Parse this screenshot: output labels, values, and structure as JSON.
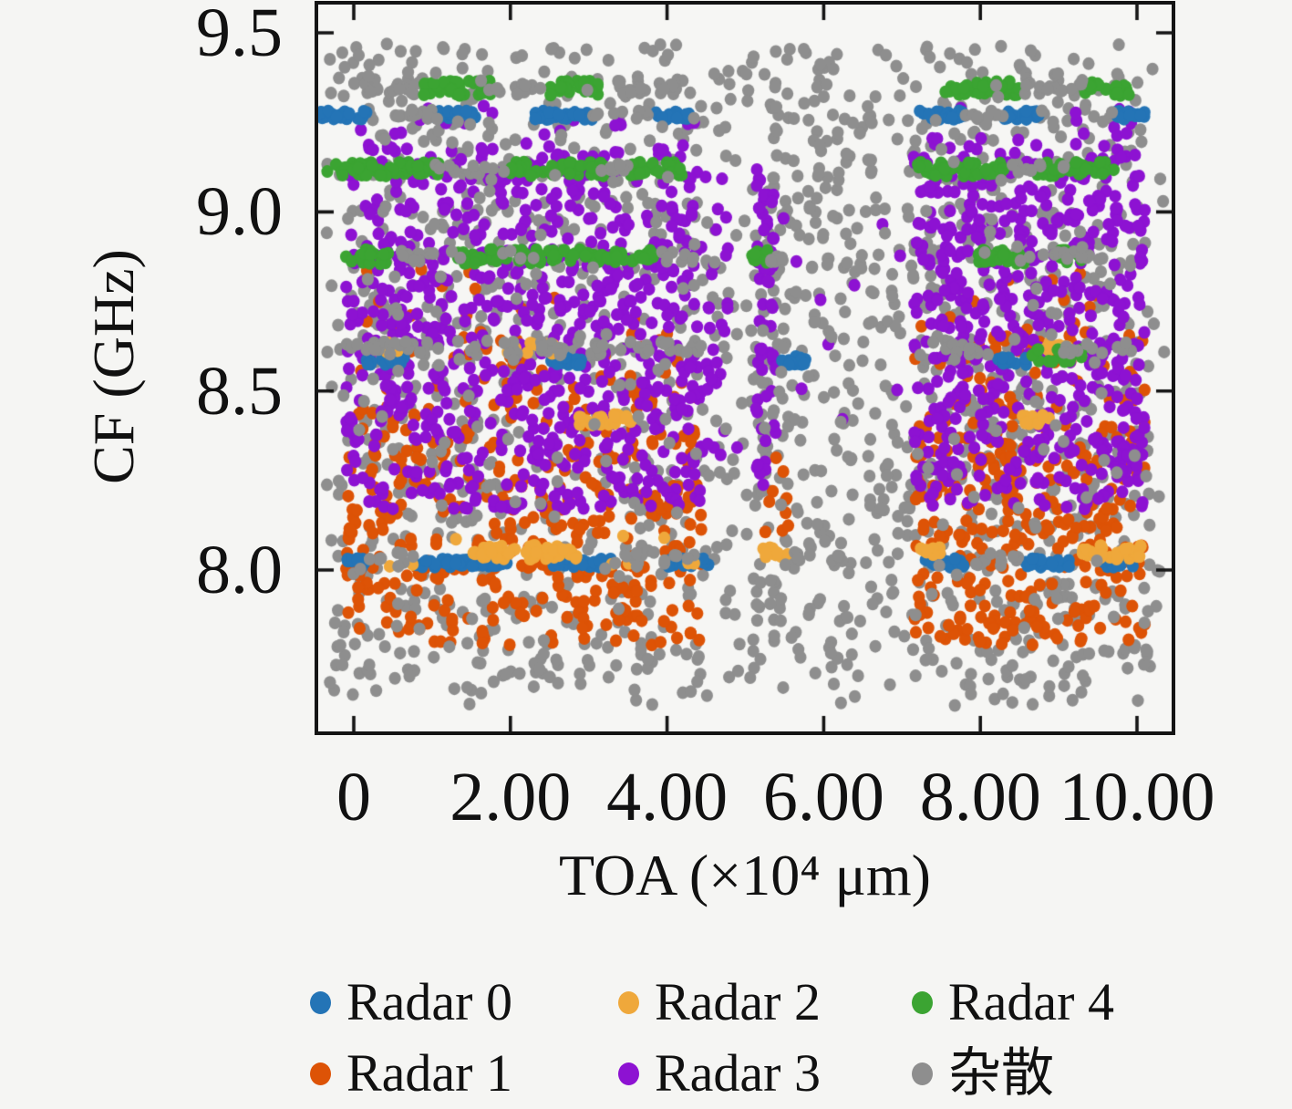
{
  "figure": {
    "background": "#f5f5f3",
    "frame_color": "#141414",
    "text_color": "#111111"
  },
  "chart_data": {
    "type": "scatter",
    "title": "",
    "xlabel": "TOA (×10⁴ μm)",
    "ylabel": "CF (GHz)",
    "xlim": [
      -0.49,
      10.45
    ],
    "ylim": [
      7.55,
      9.59
    ],
    "grid": false,
    "legend_position": "below-bottom, 3 columns x 2 rows",
    "x_ticks": {
      "values": [
        0,
        2,
        4,
        6,
        8,
        10
      ],
      "labels": [
        "0",
        "2.00",
        "4.00",
        "6.00",
        "8.00",
        "10.00"
      ]
    },
    "y_ticks": {
      "values": [
        9.5,
        9.0,
        8.5,
        8.0
      ],
      "labels": [
        "9.5",
        "9.0",
        "8.5",
        "8.0"
      ]
    },
    "marker": {
      "rx": 6.6,
      "ry": 7.0
    },
    "seed": 7,
    "active_toa_windows": [
      [
        0,
        4.45
      ],
      [
        7.15,
        10.05
      ]
    ],
    "series": [
      {
        "name": "Radar 0",
        "color": "#2474b6",
        "pattern": "horizontal dash segments at CF 9.27, 8.585 and 8.02 GHz"
      },
      {
        "name": "Radar 1",
        "color": "#dd5306",
        "pattern": "dense scatter CF 7.79-8.68 GHz inside active TOA windows 0-4.45 and 7.15-10"
      },
      {
        "name": "Radar 2",
        "color": "#efa83b",
        "pattern": "horizontal dash segments at CF 8.62, 8.42 and 8.05 GHz"
      },
      {
        "name": "Radar 3",
        "color": "#8d12d2",
        "pattern": "dense scatter CF 8.17-9.19 GHz inside active TOA windows, plus vertical streak near TOA 5.2-5.4"
      },
      {
        "name": "Radar 4",
        "color": "#3ba432",
        "pattern": "horizontal dash segments at CF 9.345, 9.12, 8.875 and 8.60 GHz"
      },
      {
        "name": "杂散",
        "color": "#8e8e8e",
        "pattern": "background clutter over full TOA 0-10 range, CF 7.62-9.47 GHz, denser in active windows"
      }
    ],
    "clusters_note": "point cloud encoded as uniform-box clusters; s = series index, n = point count, t = TOA range (x10^4 um), f = CF range (GHz); draw order = array order",
    "clusters": [
      {
        "s": 5,
        "n": 780,
        "t": [
          -0.35,
          10.35
        ],
        "f": [
          7.62,
          9.47
        ]
      },
      {
        "s": 5,
        "n": 330,
        "t": [
          -0.2,
          4.45
        ],
        "f": [
          7.66,
          9.46
        ]
      },
      {
        "s": 5,
        "n": 300,
        "t": [
          7.15,
          10.2
        ],
        "f": [
          7.66,
          9.46
        ]
      },
      {
        "s": 5,
        "n": 55,
        "t": [
          5.1,
          5.55
        ],
        "f": [
          7.75,
          9.4
        ]
      },
      {
        "s": 5,
        "n": 70,
        "t": [
          5.8,
          6.5
        ],
        "f": [
          7.7,
          9.42
        ]
      },
      {
        "s": 5,
        "n": 45,
        "t": [
          6.55,
          7.15
        ],
        "f": [
          7.7,
          9.3
        ]
      },
      {
        "s": 1,
        "n": 360,
        "t": [
          -0.1,
          4.45
        ],
        "f": [
          7.79,
          8.42
        ]
      },
      {
        "s": 1,
        "n": 70,
        "t": [
          -0.1,
          4.45
        ],
        "f": [
          8.42,
          8.68
        ]
      },
      {
        "s": 1,
        "n": 290,
        "t": [
          7.15,
          10.1
        ],
        "f": [
          7.79,
          8.42
        ]
      },
      {
        "s": 1,
        "n": 55,
        "t": [
          7.15,
          10.1
        ],
        "f": [
          8.42,
          8.68
        ]
      },
      {
        "s": 1,
        "n": 10,
        "t": [
          5.15,
          5.55
        ],
        "f": [
          8.1,
          8.38
        ]
      },
      {
        "s": 1,
        "n": 12,
        "t": [
          0,
          4.4
        ],
        "f": [
          8.68,
          8.85
        ]
      },
      {
        "s": 1,
        "n": 10,
        "t": [
          7.2,
          10
        ],
        "f": [
          8.68,
          8.85
        ]
      },
      {
        "s": 3,
        "n": 760,
        "t": [
          -0.1,
          4.45
        ],
        "f": [
          8.17,
          9.19
        ]
      },
      {
        "s": 3,
        "n": 560,
        "t": [
          7.15,
          10.1
        ],
        "f": [
          8.17,
          9.19
        ]
      },
      {
        "s": 3,
        "n": 55,
        "t": [
          5.14,
          5.4
        ],
        "f": [
          8.2,
          9.12
        ]
      },
      {
        "s": 3,
        "n": 28,
        "t": [
          4.45,
          4.8
        ],
        "f": [
          8.3,
          9.1
        ]
      },
      {
        "s": 3,
        "n": 14,
        "t": [
          4.8,
          7.15
        ],
        "f": [
          8.2,
          9.1
        ]
      },
      {
        "s": 3,
        "n": 20,
        "t": [
          -0.1,
          4.45
        ],
        "f": [
          9.19,
          9.3
        ]
      },
      {
        "s": 3,
        "n": 14,
        "t": [
          7.15,
          10.1
        ],
        "f": [
          9.19,
          9.3
        ]
      },
      {
        "s": 0,
        "n": 28,
        "t": [
          -0.45,
          0.2
        ],
        "f": [
          9.258,
          9.282
        ]
      },
      {
        "s": 0,
        "n": 26,
        "t": [
          1.05,
          1.65
        ],
        "f": [
          9.258,
          9.282
        ]
      },
      {
        "s": 0,
        "n": 32,
        "t": [
          2.3,
          3.05
        ],
        "f": [
          9.258,
          9.282
        ]
      },
      {
        "s": 0,
        "n": 22,
        "t": [
          3.85,
          4.35
        ],
        "f": [
          9.258,
          9.282
        ]
      },
      {
        "s": 0,
        "n": 26,
        "t": [
          7.2,
          7.8
        ],
        "f": [
          9.258,
          9.282
        ]
      },
      {
        "s": 0,
        "n": 20,
        "t": [
          8.3,
          8.75
        ],
        "f": [
          9.258,
          9.282
        ]
      },
      {
        "s": 0,
        "n": 18,
        "t": [
          9.7,
          10.1
        ],
        "f": [
          9.258,
          9.282
        ]
      },
      {
        "s": 0,
        "n": 20,
        "t": [
          0.15,
          0.7
        ],
        "f": [
          8.573,
          8.597
        ]
      },
      {
        "s": 0,
        "n": 20,
        "t": [
          2.45,
          2.95
        ],
        "f": [
          8.573,
          8.597
        ]
      },
      {
        "s": 0,
        "n": 16,
        "t": [
          5.45,
          5.8
        ],
        "f": [
          8.573,
          8.597
        ]
      },
      {
        "s": 0,
        "n": 18,
        "t": [
          8.15,
          8.6
        ],
        "f": [
          8.573,
          8.597
        ]
      },
      {
        "s": 0,
        "n": 12,
        "t": [
          -0.1,
          0.2
        ],
        "f": [
          8.008,
          8.032
        ]
      },
      {
        "s": 0,
        "n": 46,
        "t": [
          0.8,
          2.0
        ],
        "f": [
          8.008,
          8.032
        ]
      },
      {
        "s": 0,
        "n": 28,
        "t": [
          2.55,
          3.3
        ],
        "f": [
          8.008,
          8.032
        ]
      },
      {
        "s": 0,
        "n": 20,
        "t": [
          4.0,
          4.55
        ],
        "f": [
          8.008,
          8.032
        ]
      },
      {
        "s": 0,
        "n": 22,
        "t": [
          7.3,
          7.8
        ],
        "f": [
          8.008,
          8.032
        ]
      },
      {
        "s": 0,
        "n": 26,
        "t": [
          8.55,
          9.15
        ],
        "f": [
          8.008,
          8.032
        ]
      },
      {
        "s": 0,
        "n": 16,
        "t": [
          9.55,
          9.95
        ],
        "f": [
          8.008,
          8.032
        ]
      },
      {
        "s": 2,
        "n": 52,
        "t": [
          1.5,
          2.95
        ],
        "f": [
          8.03,
          8.07
        ]
      },
      {
        "s": 2,
        "n": 14,
        "t": [
          5.2,
          5.55
        ],
        "f": [
          8.035,
          8.065
        ]
      },
      {
        "s": 2,
        "n": 12,
        "t": [
          7.2,
          7.5
        ],
        "f": [
          8.035,
          8.065
        ]
      },
      {
        "s": 2,
        "n": 36,
        "t": [
          9.25,
          10.05
        ],
        "f": [
          8.03,
          8.07
        ]
      },
      {
        "s": 2,
        "n": 26,
        "t": [
          2.85,
          3.55
        ],
        "f": [
          8.405,
          8.435
        ]
      },
      {
        "s": 2,
        "n": 12,
        "t": [
          8.5,
          8.9
        ],
        "f": [
          8.405,
          8.435
        ]
      },
      {
        "s": 2,
        "n": 20,
        "t": [
          1.95,
          2.55
        ],
        "f": [
          8.605,
          8.635
        ]
      },
      {
        "s": 2,
        "n": 8,
        "t": [
          0.3,
          0.6
        ],
        "f": [
          8.605,
          8.635
        ]
      },
      {
        "s": 2,
        "n": 12,
        "t": [
          8.85,
          9.25
        ],
        "f": [
          8.605,
          8.635
        ]
      },
      {
        "s": 2,
        "n": 10,
        "t": [
          0,
          4.4
        ],
        "f": [
          8.0,
          8.1
        ]
      },
      {
        "s": 4,
        "n": 40,
        "t": [
          0.85,
          1.75
        ],
        "f": [
          9.325,
          9.365
        ]
      },
      {
        "s": 4,
        "n": 30,
        "t": [
          2.5,
          3.15
        ],
        "f": [
          9.325,
          9.365
        ]
      },
      {
        "s": 4,
        "n": 40,
        "t": [
          7.55,
          8.5
        ],
        "f": [
          9.325,
          9.365
        ]
      },
      {
        "s": 4,
        "n": 26,
        "t": [
          9.3,
          9.9
        ],
        "f": [
          9.325,
          9.365
        ]
      },
      {
        "s": 4,
        "n": 55,
        "t": [
          -0.35,
          1.1
        ],
        "f": [
          9.1,
          9.14
        ]
      },
      {
        "s": 4,
        "n": 50,
        "t": [
          1.9,
          3.2
        ],
        "f": [
          9.1,
          9.14
        ]
      },
      {
        "s": 4,
        "n": 34,
        "t": [
          3.5,
          4.35
        ],
        "f": [
          9.1,
          9.14
        ]
      },
      {
        "s": 4,
        "n": 46,
        "t": [
          7.2,
          8.3
        ],
        "f": [
          9.1,
          9.14
        ]
      },
      {
        "s": 4,
        "n": 40,
        "t": [
          8.7,
          9.75
        ],
        "f": [
          9.1,
          9.14
        ]
      },
      {
        "s": 4,
        "n": 20,
        "t": [
          -0.1,
          0.45
        ],
        "f": [
          8.855,
          8.895
        ]
      },
      {
        "s": 4,
        "n": 85,
        "t": [
          1.3,
          3.85
        ],
        "f": [
          8.855,
          8.895
        ]
      },
      {
        "s": 4,
        "n": 12,
        "t": [
          5.05,
          5.35
        ],
        "f": [
          8.855,
          8.895
        ]
      },
      {
        "s": 4,
        "n": 26,
        "t": [
          7.95,
          8.6
        ],
        "f": [
          8.855,
          8.895
        ]
      },
      {
        "s": 4,
        "n": 10,
        "t": [
          9.0,
          9.3
        ],
        "f": [
          8.855,
          8.895
        ]
      },
      {
        "s": 4,
        "n": 22,
        "t": [
          8.65,
          9.3
        ],
        "f": [
          8.58,
          8.62
        ]
      },
      {
        "s": 5,
        "n": 14,
        "t": [
          -0.2,
          0.8
        ],
        "f": [
          9.33,
          9.36
        ]
      },
      {
        "s": 5,
        "n": 12,
        "t": [
          1.7,
          2.5
        ],
        "f": [
          9.33,
          9.36
        ]
      },
      {
        "s": 5,
        "n": 16,
        "t": [
          3.1,
          4.3
        ],
        "f": [
          9.33,
          9.36
        ]
      },
      {
        "s": 5,
        "n": 12,
        "t": [
          8.4,
          9.3
        ],
        "f": [
          9.33,
          9.36
        ]
      },
      {
        "s": 5,
        "n": 10,
        "t": [
          0.3,
          1.0
        ],
        "f": [
          9.26,
          9.285
        ]
      },
      {
        "s": 5,
        "n": 10,
        "t": [
          3.0,
          3.9
        ],
        "f": [
          9.26,
          9.285
        ]
      },
      {
        "s": 5,
        "n": 8,
        "t": [
          7.8,
          8.3
        ],
        "f": [
          9.26,
          9.285
        ]
      },
      {
        "s": 5,
        "n": 12,
        "t": [
          1.0,
          2.0
        ],
        "f": [
          9.105,
          9.135
        ]
      },
      {
        "s": 5,
        "n": 8,
        "t": [
          3.1,
          3.6
        ],
        "f": [
          9.105,
          9.135
        ]
      },
      {
        "s": 5,
        "n": 8,
        "t": [
          8.2,
          8.8
        ],
        "f": [
          9.105,
          9.135
        ]
      },
      {
        "s": 5,
        "n": 12,
        "t": [
          0.4,
          1.4
        ],
        "f": [
          8.86,
          8.89
        ]
      },
      {
        "s": 5,
        "n": 8,
        "t": [
          3.8,
          4.45
        ],
        "f": [
          8.86,
          8.89
        ]
      },
      {
        "s": 5,
        "n": 6,
        "t": [
          5.3,
          5.6
        ],
        "f": [
          8.86,
          8.89
        ]
      },
      {
        "s": 5,
        "n": 12,
        "t": [
          8.5,
          9.4
        ],
        "f": [
          8.86,
          8.89
        ]
      },
      {
        "s": 5,
        "n": 20,
        "t": [
          -0.2,
          1.2
        ],
        "f": [
          8.6,
          8.64
        ]
      },
      {
        "s": 5,
        "n": 24,
        "t": [
          1.4,
          3.2
        ],
        "f": [
          8.6,
          8.64
        ]
      },
      {
        "s": 5,
        "n": 14,
        "t": [
          3.4,
          4.5
        ],
        "f": [
          8.6,
          8.64
        ]
      },
      {
        "s": 5,
        "n": 16,
        "t": [
          7.2,
          8.2
        ],
        "f": [
          8.6,
          8.64
        ]
      },
      {
        "s": 5,
        "n": 12,
        "t": [
          9.0,
          10.0
        ],
        "f": [
          8.6,
          8.64
        ]
      },
      {
        "s": 5,
        "n": 8,
        "t": [
          0.2,
          0.8
        ],
        "f": [
          8.01,
          8.05
        ]
      },
      {
        "s": 5,
        "n": 14,
        "t": [
          3.3,
          4.4
        ],
        "f": [
          8.01,
          8.05
        ]
      },
      {
        "s": 5,
        "n": 10,
        "t": [
          5.5,
          6.3
        ],
        "f": [
          8.01,
          8.05
        ]
      },
      {
        "s": 5,
        "n": 10,
        "t": [
          7.8,
          8.5
        ],
        "f": [
          8.01,
          8.05
        ]
      },
      {
        "s": 5,
        "n": 260,
        "t": [
          -0.2,
          10.2
        ],
        "f": [
          7.63,
          9.47
        ]
      }
    ]
  },
  "legend": {
    "items": [
      {
        "label": "Radar 0",
        "color": "#2474b6"
      },
      {
        "label": "Radar 1",
        "color": "#dd5306"
      },
      {
        "label": "Radar 2",
        "color": "#efa83b"
      },
      {
        "label": "Radar 3",
        "color": "#8d12d2"
      },
      {
        "label": "Radar 4",
        "color": "#3ba432"
      },
      {
        "label": "杂散",
        "color": "#8e8e8e"
      }
    ]
  }
}
